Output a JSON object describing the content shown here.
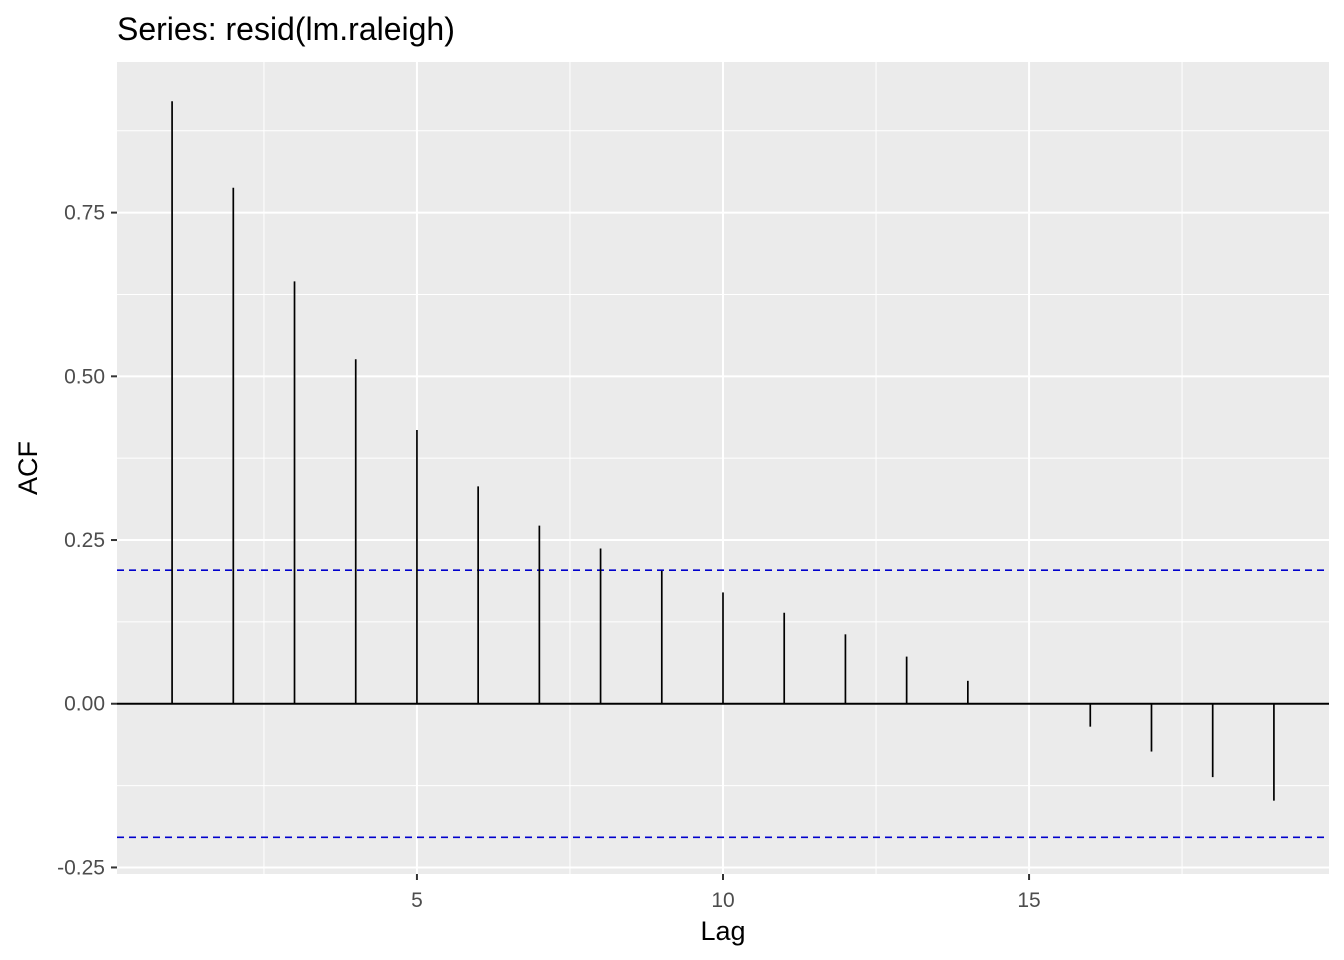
{
  "chart_data": {
    "type": "bar",
    "title": "Series: resid(lm.raleigh)",
    "xlabel": "Lag",
    "ylabel": "ACF",
    "lags": [
      1,
      2,
      3,
      4,
      5,
      6,
      7,
      8,
      9,
      10,
      11,
      12,
      13,
      14,
      15,
      16,
      17,
      18,
      19
    ],
    "values": [
      0.92,
      0.788,
      0.645,
      0.526,
      0.418,
      0.332,
      0.272,
      0.237,
      0.203,
      0.17,
      0.139,
      0.106,
      0.072,
      0.035,
      0.0,
      -0.035,
      -0.073,
      -0.112,
      -0.148
    ],
    "ci": 0.204,
    "xlim": [
      0.1,
      19.9
    ],
    "ylim": [
      -0.26,
      0.98
    ],
    "xticks": [
      5,
      10,
      15
    ],
    "xtick_labels": [
      "5",
      "10",
      "15"
    ],
    "yticks": [
      -0.25,
      0,
      0.25,
      0.5,
      0.75
    ],
    "ytick_labels": [
      "-0.25",
      "0.00",
      "0.25",
      "0.50",
      "0.75"
    ],
    "grid": true,
    "colors": {
      "panel": "#ebebeb",
      "grid": "#ffffff",
      "stem": "#000000",
      "ci_line": "#0000cc",
      "zero_line": "#000000"
    }
  }
}
